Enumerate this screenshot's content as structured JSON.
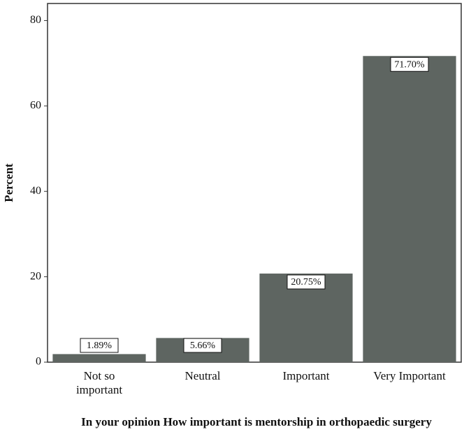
{
  "chart_data": {
    "type": "bar",
    "x_label": "In your opinion How important is mentorship in orthopaedic surgery",
    "y_label": "Percent",
    "categories": [
      "Not so important",
      "Neutral",
      "Important",
      "Very Important"
    ],
    "values": [
      1.89,
      5.66,
      20.75,
      71.7
    ],
    "value_labels": [
      "1.89%",
      "5.66%",
      "20.75%",
      "71.70%"
    ],
    "color": "#5e6561",
    "ylim": [
      0,
      84
    ],
    "yticks": [
      0,
      20,
      40,
      60,
      80
    ]
  }
}
